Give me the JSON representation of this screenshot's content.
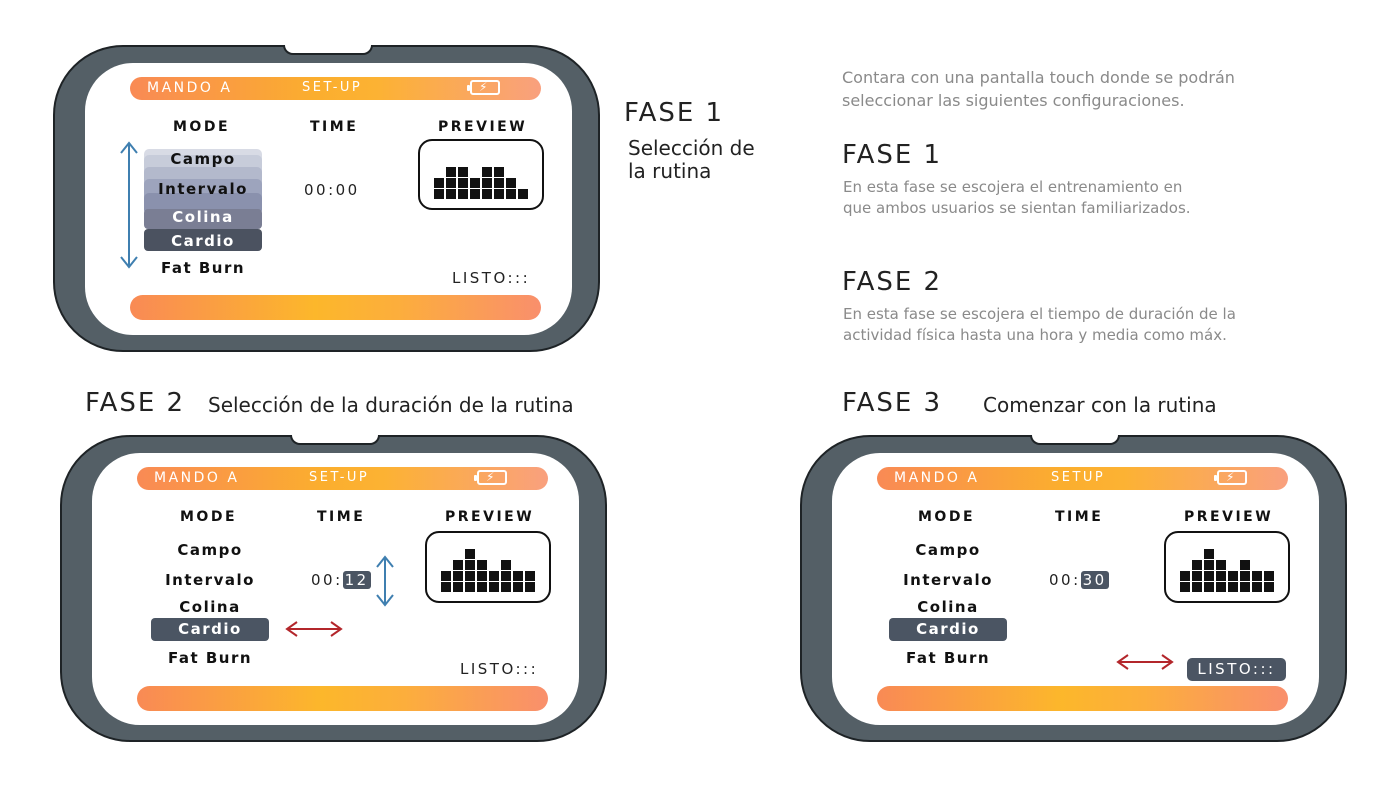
{
  "intro": {
    "line1": "Contara  con una  pantalla touch donde se podrán",
    "line2": "seleccionar las siguientes configuraciones."
  },
  "phase1_label": "FASE 1",
  "phase1_sub1": "Selección de",
  "phase1_sub2": "la rutina",
  "desc_fase1": {
    "title": "FASE 1",
    "line1": "En esta fase se escojera el entrenamiento en",
    "line2": "que ambos usuarios se sientan familiarizados."
  },
  "desc_fase2": {
    "title": "FASE 2",
    "line1": "En esta fase se escojera el tiempo de duración de la",
    "line2": "actividad física  hasta una hora y media como máx."
  },
  "phase2_label": "FASE 2",
  "phase2_sub": "Selección de la duración de  la rutina",
  "phase3_label": "FASE 3",
  "phase3_sub": "Comenzar con la rutina",
  "colors": {
    "device": "#545f66",
    "accent_orange": "#f98a55",
    "accent_yellow": "#fbae2e",
    "pill_dark": "#4b5563",
    "arrow_blue": "#3f7fb0",
    "arrow_red": "#b3262b"
  },
  "screens": [
    {
      "title_left": "MANDO A",
      "title_mid": "SET-UP",
      "battery_icon": "battery-charging-icon",
      "mode_header": "MODE",
      "time_header": "TIME",
      "preview_header": "PREVIEW",
      "modes": [
        "Campo",
        "Intervalo",
        "Colina",
        "Cardio",
        "Fat Burn"
      ],
      "selected_mode": "Cardio",
      "time_prefix": "00:00",
      "time_value": "",
      "listo": "LISTO:::",
      "preview_bars": [
        2,
        3,
        3,
        2,
        3,
        3,
        2,
        1
      ]
    },
    {
      "title_left": "MANDO A",
      "title_mid": "SET-UP",
      "battery_icon": "battery-charging-icon",
      "mode_header": "MODE",
      "time_header": "TIME",
      "preview_header": "PREVIEW",
      "modes": [
        "Campo",
        "Intervalo",
        "Colina",
        "Cardio",
        "Fat Burn"
      ],
      "selected_mode": "Cardio",
      "time_prefix": "00:",
      "time_value": "12",
      "listo": "LISTO:::",
      "preview_bars": [
        2,
        3,
        4,
        3,
        2,
        3,
        2,
        2
      ]
    },
    {
      "title_left": "MANDO A",
      "title_mid": "SETUP",
      "battery_icon": "battery-charging-icon",
      "mode_header": "MODE",
      "time_header": "TIME",
      "preview_header": "PREVIEW",
      "modes": [
        "Campo",
        "Intervalo",
        "Colina",
        "Cardio",
        "Fat Burn"
      ],
      "selected_mode": "Cardio",
      "time_prefix": "00:",
      "time_value": "30",
      "listo": "LISTO:::",
      "preview_bars": [
        2,
        3,
        4,
        3,
        2,
        3,
        2,
        2
      ]
    }
  ]
}
